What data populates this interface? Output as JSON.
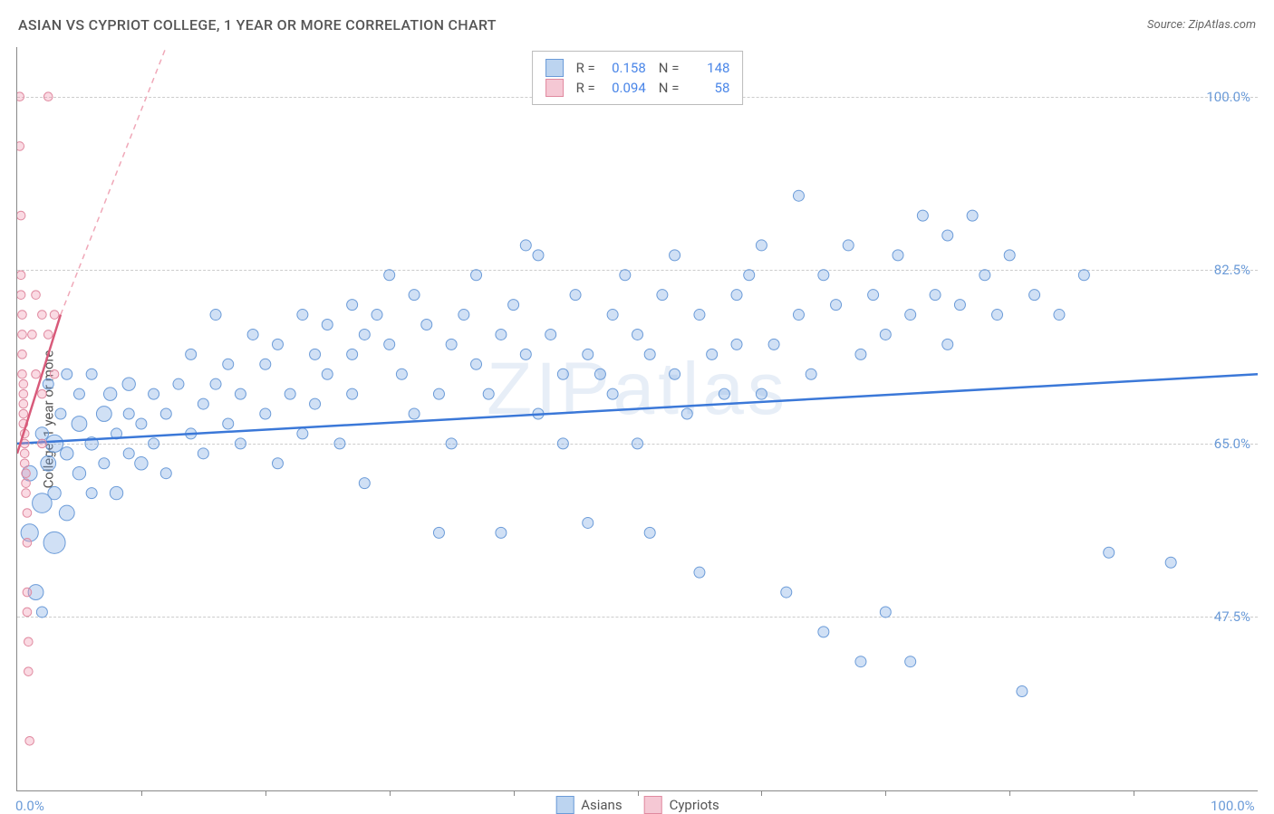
{
  "header": {
    "title": "ASIAN VS CYPRIOT COLLEGE, 1 YEAR OR MORE CORRELATION CHART",
    "source_prefix": "Source: ",
    "source_name": "ZipAtlas.com"
  },
  "watermark": "ZIPatlas",
  "chart": {
    "type": "scatter",
    "background_color": "#ffffff",
    "grid_color": "#cccccc",
    "axis_color": "#888888",
    "ylabel": "College, 1 year or more",
    "ylabel_fontsize": 15,
    "xlim": [
      0,
      100
    ],
    "ylim": [
      30,
      105
    ],
    "x_ticks_minor": [
      10,
      20,
      30,
      40,
      50,
      60,
      70,
      80,
      90
    ],
    "x_tick_labels": [
      {
        "pos": 0,
        "label": "0.0%"
      },
      {
        "pos": 100,
        "label": "100.0%"
      }
    ],
    "y_gridlines": [
      47.5,
      65.0,
      82.5,
      100.0
    ],
    "y_tick_labels": [
      {
        "pos": 47.5,
        "label": "47.5%"
      },
      {
        "pos": 65.0,
        "label": "65.0%"
      },
      {
        "pos": 82.5,
        "label": "82.5%"
      },
      {
        "pos": 100.0,
        "label": "100.0%"
      }
    ],
    "series": [
      {
        "name": "Asians",
        "color_fill": "rgba(120,165,225,0.35)",
        "color_stroke": "#6b9bd8",
        "swatch_fill": "#bcd4f0",
        "swatch_border": "#6b9bd8",
        "R": "0.158",
        "N": "148",
        "trend": {
          "x1": 0,
          "y1": 65,
          "x2": 100,
          "y2": 72,
          "dash": false,
          "width": 2.5,
          "color": "#3b78d8"
        },
        "points": [
          {
            "x": 1,
            "y": 62,
            "r": 14
          },
          {
            "x": 1,
            "y": 56,
            "r": 16
          },
          {
            "x": 1.5,
            "y": 50,
            "r": 14
          },
          {
            "x": 2,
            "y": 66,
            "r": 12
          },
          {
            "x": 2,
            "y": 59,
            "r": 18
          },
          {
            "x": 2,
            "y": 48,
            "r": 10
          },
          {
            "x": 2.5,
            "y": 71,
            "r": 10
          },
          {
            "x": 2.5,
            "y": 63,
            "r": 14
          },
          {
            "x": 3,
            "y": 65,
            "r": 16
          },
          {
            "x": 3,
            "y": 60,
            "r": 12
          },
          {
            "x": 3,
            "y": 55,
            "r": 20
          },
          {
            "x": 3.5,
            "y": 68,
            "r": 10
          },
          {
            "x": 4,
            "y": 64,
            "r": 12
          },
          {
            "x": 4,
            "y": 72,
            "r": 10
          },
          {
            "x": 4,
            "y": 58,
            "r": 14
          },
          {
            "x": 5,
            "y": 62,
            "r": 12
          },
          {
            "x": 5,
            "y": 67,
            "r": 14
          },
          {
            "x": 5,
            "y": 70,
            "r": 10
          },
          {
            "x": 6,
            "y": 60,
            "r": 10
          },
          {
            "x": 6,
            "y": 65,
            "r": 12
          },
          {
            "x": 6,
            "y": 72,
            "r": 10
          },
          {
            "x": 7,
            "y": 68,
            "r": 14
          },
          {
            "x": 7,
            "y": 63,
            "r": 10
          },
          {
            "x": 7.5,
            "y": 70,
            "r": 12
          },
          {
            "x": 8,
            "y": 66,
            "r": 10
          },
          {
            "x": 8,
            "y": 60,
            "r": 12
          },
          {
            "x": 9,
            "y": 64,
            "r": 10
          },
          {
            "x": 9,
            "y": 71,
            "r": 12
          },
          {
            "x": 9,
            "y": 68,
            "r": 10
          },
          {
            "x": 10,
            "y": 67,
            "r": 10
          },
          {
            "x": 10,
            "y": 63,
            "r": 12
          },
          {
            "x": 11,
            "y": 70,
            "r": 10
          },
          {
            "x": 11,
            "y": 65,
            "r": 10
          },
          {
            "x": 12,
            "y": 68,
            "r": 10
          },
          {
            "x": 12,
            "y": 62,
            "r": 10
          },
          {
            "x": 13,
            "y": 71,
            "r": 10
          },
          {
            "x": 14,
            "y": 66,
            "r": 10
          },
          {
            "x": 14,
            "y": 74,
            "r": 10
          },
          {
            "x": 15,
            "y": 69,
            "r": 10
          },
          {
            "x": 15,
            "y": 64,
            "r": 10
          },
          {
            "x": 16,
            "y": 78,
            "r": 10
          },
          {
            "x": 16,
            "y": 71,
            "r": 10
          },
          {
            "x": 17,
            "y": 67,
            "r": 10
          },
          {
            "x": 17,
            "y": 73,
            "r": 10
          },
          {
            "x": 18,
            "y": 65,
            "r": 10
          },
          {
            "x": 18,
            "y": 70,
            "r": 10
          },
          {
            "x": 19,
            "y": 76,
            "r": 10
          },
          {
            "x": 20,
            "y": 73,
            "r": 10
          },
          {
            "x": 20,
            "y": 68,
            "r": 10
          },
          {
            "x": 21,
            "y": 75,
            "r": 10
          },
          {
            "x": 21,
            "y": 63,
            "r": 10
          },
          {
            "x": 22,
            "y": 70,
            "r": 10
          },
          {
            "x": 23,
            "y": 78,
            "r": 10
          },
          {
            "x": 23,
            "y": 66,
            "r": 10
          },
          {
            "x": 24,
            "y": 74,
            "r": 10
          },
          {
            "x": 24,
            "y": 69,
            "r": 10
          },
          {
            "x": 25,
            "y": 77,
            "r": 10
          },
          {
            "x": 25,
            "y": 72,
            "r": 10
          },
          {
            "x": 26,
            "y": 65,
            "r": 10
          },
          {
            "x": 27,
            "y": 79,
            "r": 10
          },
          {
            "x": 27,
            "y": 74,
            "r": 10
          },
          {
            "x": 27,
            "y": 70,
            "r": 10
          },
          {
            "x": 28,
            "y": 76,
            "r": 10
          },
          {
            "x": 28,
            "y": 61,
            "r": 10
          },
          {
            "x": 29,
            "y": 78,
            "r": 10
          },
          {
            "x": 30,
            "y": 75,
            "r": 10
          },
          {
            "x": 30,
            "y": 82,
            "r": 10
          },
          {
            "x": 31,
            "y": 72,
            "r": 10
          },
          {
            "x": 32,
            "y": 68,
            "r": 10
          },
          {
            "x": 32,
            "y": 80,
            "r": 10
          },
          {
            "x": 33,
            "y": 77,
            "r": 10
          },
          {
            "x": 34,
            "y": 70,
            "r": 10
          },
          {
            "x": 34,
            "y": 56,
            "r": 10
          },
          {
            "x": 35,
            "y": 75,
            "r": 10
          },
          {
            "x": 35,
            "y": 65,
            "r": 10
          },
          {
            "x": 36,
            "y": 78,
            "r": 10
          },
          {
            "x": 37,
            "y": 73,
            "r": 10
          },
          {
            "x": 37,
            "y": 82,
            "r": 10
          },
          {
            "x": 38,
            "y": 70,
            "r": 10
          },
          {
            "x": 39,
            "y": 76,
            "r": 10
          },
          {
            "x": 39,
            "y": 56,
            "r": 10
          },
          {
            "x": 40,
            "y": 79,
            "r": 10
          },
          {
            "x": 41,
            "y": 74,
            "r": 10
          },
          {
            "x": 41,
            "y": 85,
            "r": 10
          },
          {
            "x": 42,
            "y": 68,
            "r": 10
          },
          {
            "x": 42,
            "y": 84,
            "r": 10
          },
          {
            "x": 43,
            "y": 76,
            "r": 10
          },
          {
            "x": 44,
            "y": 72,
            "r": 10
          },
          {
            "x": 44,
            "y": 65,
            "r": 10
          },
          {
            "x": 45,
            "y": 80,
            "r": 10
          },
          {
            "x": 46,
            "y": 74,
            "r": 10
          },
          {
            "x": 46,
            "y": 57,
            "r": 10
          },
          {
            "x": 47,
            "y": 72,
            "r": 10
          },
          {
            "x": 48,
            "y": 78,
            "r": 10
          },
          {
            "x": 48,
            "y": 70,
            "r": 10
          },
          {
            "x": 49,
            "y": 82,
            "r": 10
          },
          {
            "x": 50,
            "y": 76,
            "r": 10
          },
          {
            "x": 50,
            "y": 65,
            "r": 10
          },
          {
            "x": 51,
            "y": 74,
            "r": 10
          },
          {
            "x": 51,
            "y": 56,
            "r": 10
          },
          {
            "x": 52,
            "y": 80,
            "r": 10
          },
          {
            "x": 53,
            "y": 72,
            "r": 10
          },
          {
            "x": 53,
            "y": 84,
            "r": 10
          },
          {
            "x": 54,
            "y": 68,
            "r": 10
          },
          {
            "x": 55,
            "y": 78,
            "r": 10
          },
          {
            "x": 55,
            "y": 52,
            "r": 10
          },
          {
            "x": 56,
            "y": 74,
            "r": 10
          },
          {
            "x": 57,
            "y": 70,
            "r": 10
          },
          {
            "x": 58,
            "y": 80,
            "r": 10
          },
          {
            "x": 58,
            "y": 75,
            "r": 10
          },
          {
            "x": 59,
            "y": 82,
            "r": 10
          },
          {
            "x": 60,
            "y": 85,
            "r": 10
          },
          {
            "x": 60,
            "y": 70,
            "r": 10
          },
          {
            "x": 61,
            "y": 75,
            "r": 10
          },
          {
            "x": 62,
            "y": 50,
            "r": 10
          },
          {
            "x": 63,
            "y": 78,
            "r": 10
          },
          {
            "x": 63,
            "y": 90,
            "r": 10
          },
          {
            "x": 64,
            "y": 72,
            "r": 10
          },
          {
            "x": 65,
            "y": 82,
            "r": 10
          },
          {
            "x": 65,
            "y": 46,
            "r": 10
          },
          {
            "x": 66,
            "y": 79,
            "r": 10
          },
          {
            "x": 67,
            "y": 85,
            "r": 10
          },
          {
            "x": 68,
            "y": 74,
            "r": 10
          },
          {
            "x": 68,
            "y": 43,
            "r": 10
          },
          {
            "x": 69,
            "y": 80,
            "r": 10
          },
          {
            "x": 70,
            "y": 76,
            "r": 10
          },
          {
            "x": 70,
            "y": 48,
            "r": 10
          },
          {
            "x": 71,
            "y": 84,
            "r": 10
          },
          {
            "x": 72,
            "y": 78,
            "r": 10
          },
          {
            "x": 72,
            "y": 43,
            "r": 10
          },
          {
            "x": 73,
            "y": 88,
            "r": 10
          },
          {
            "x": 74,
            "y": 80,
            "r": 10
          },
          {
            "x": 75,
            "y": 75,
            "r": 10
          },
          {
            "x": 75,
            "y": 86,
            "r": 10
          },
          {
            "x": 76,
            "y": 79,
            "r": 10
          },
          {
            "x": 77,
            "y": 88,
            "r": 10
          },
          {
            "x": 78,
            "y": 82,
            "r": 10
          },
          {
            "x": 79,
            "y": 78,
            "r": 10
          },
          {
            "x": 80,
            "y": 84,
            "r": 10
          },
          {
            "x": 81,
            "y": 40,
            "r": 10
          },
          {
            "x": 82,
            "y": 80,
            "r": 10
          },
          {
            "x": 84,
            "y": 78,
            "r": 10
          },
          {
            "x": 86,
            "y": 82,
            "r": 10
          },
          {
            "x": 88,
            "y": 54,
            "r": 10
          },
          {
            "x": 93,
            "y": 53,
            "r": 10
          }
        ]
      },
      {
        "name": "Cypriots",
        "color_fill": "rgba(240,150,175,0.35)",
        "color_stroke": "#e08aa0",
        "swatch_fill": "#f5c8d4",
        "swatch_border": "#e08aa0",
        "R": "0.094",
        "N": "58",
        "trend": {
          "x1": 0,
          "y1": 64,
          "x2": 3.5,
          "y2": 78,
          "dash": false,
          "width": 2.5,
          "color": "#d85a7a"
        },
        "trend_ext": {
          "x1": 3.5,
          "y1": 78,
          "x2": 12,
          "y2": 105,
          "dash": true,
          "width": 1.5,
          "color": "#f0a8b8"
        },
        "points": [
          {
            "x": 0.2,
            "y": 100,
            "r": 8
          },
          {
            "x": 0.2,
            "y": 95,
            "r": 8
          },
          {
            "x": 0.3,
            "y": 88,
            "r": 8
          },
          {
            "x": 0.3,
            "y": 82,
            "r": 8
          },
          {
            "x": 0.3,
            "y": 80,
            "r": 8
          },
          {
            "x": 0.4,
            "y": 78,
            "r": 8
          },
          {
            "x": 0.4,
            "y": 76,
            "r": 8
          },
          {
            "x": 0.4,
            "y": 74,
            "r": 8
          },
          {
            "x": 0.4,
            "y": 72,
            "r": 8
          },
          {
            "x": 0.5,
            "y": 71,
            "r": 8
          },
          {
            "x": 0.5,
            "y": 70,
            "r": 8
          },
          {
            "x": 0.5,
            "y": 69,
            "r": 8
          },
          {
            "x": 0.5,
            "y": 68,
            "r": 8
          },
          {
            "x": 0.5,
            "y": 67,
            "r": 8
          },
          {
            "x": 0.6,
            "y": 66,
            "r": 8
          },
          {
            "x": 0.6,
            "y": 65,
            "r": 8
          },
          {
            "x": 0.6,
            "y": 64,
            "r": 8
          },
          {
            "x": 0.6,
            "y": 63,
            "r": 8
          },
          {
            "x": 0.7,
            "y": 62,
            "r": 8
          },
          {
            "x": 0.7,
            "y": 61,
            "r": 8
          },
          {
            "x": 0.7,
            "y": 60,
            "r": 8
          },
          {
            "x": 0.8,
            "y": 58,
            "r": 8
          },
          {
            "x": 0.8,
            "y": 55,
            "r": 8
          },
          {
            "x": 0.8,
            "y": 50,
            "r": 8
          },
          {
            "x": 0.8,
            "y": 48,
            "r": 8
          },
          {
            "x": 0.9,
            "y": 45,
            "r": 8
          },
          {
            "x": 0.9,
            "y": 42,
            "r": 8
          },
          {
            "x": 1.0,
            "y": 35,
            "r": 8
          },
          {
            "x": 1.2,
            "y": 76,
            "r": 8
          },
          {
            "x": 1.5,
            "y": 80,
            "r": 8
          },
          {
            "x": 1.5,
            "y": 72,
            "r": 8
          },
          {
            "x": 2.0,
            "y": 78,
            "r": 8
          },
          {
            "x": 2.0,
            "y": 70,
            "r": 8
          },
          {
            "x": 2.0,
            "y": 65,
            "r": 8
          },
          {
            "x": 2.5,
            "y": 76,
            "r": 8
          },
          {
            "x": 2.5,
            "y": 100,
            "r": 8
          },
          {
            "x": 3.0,
            "y": 78,
            "r": 8
          },
          {
            "x": 3.0,
            "y": 72,
            "r": 8
          }
        ]
      }
    ],
    "legend_bottom": [
      {
        "swatch_fill": "#bcd4f0",
        "swatch_border": "#6b9bd8",
        "label": "Asians"
      },
      {
        "swatch_fill": "#f5c8d4",
        "swatch_border": "#e08aa0",
        "label": "Cypriots"
      }
    ],
    "legend_top_labels": {
      "R": "R =",
      "N": "N ="
    }
  }
}
